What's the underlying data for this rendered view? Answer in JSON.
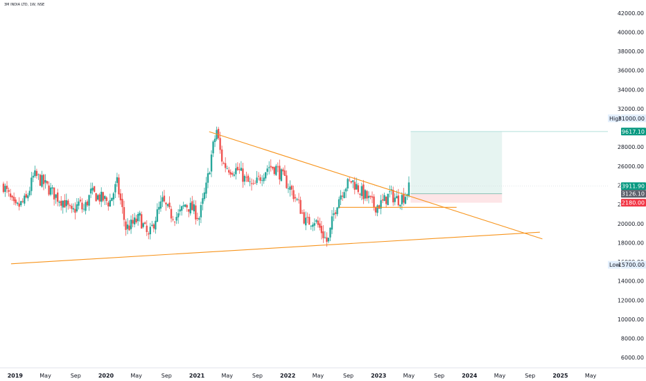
{
  "symbol_title": "3M INDIA LTD, 1W, NSE",
  "colors": {
    "up": "#26a69a",
    "down": "#ef5350",
    "trendline": "#f7931a",
    "target_fill": "#e6f4f1",
    "stop_fill": "#fde5e7",
    "target_label": "#089981",
    "entry_label": "#5d606b",
    "stop_label": "#f23645",
    "grid_line": "#b2dfdb"
  },
  "chart_data": {
    "type": "candlestick",
    "title": "3M INDIA LTD, 1W, NSE",
    "x_range": [
      "2018-11",
      "2025-07"
    ],
    "ylim": [
      5000,
      43000
    ],
    "y_ticks": [
      "42000.00",
      "40000.00",
      "38000.00",
      "36000.00",
      "34000.00",
      "32000.00",
      "31000.00",
      "28000.00",
      "26000.00",
      "24000.00",
      "22000.00",
      "20000.00",
      "18000.00",
      "16000.00",
      "14000.00",
      "12000.00",
      "10000.00",
      "8000.00",
      "6000.00"
    ],
    "x_ticks": [
      {
        "label": "2019",
        "date": "2019-01"
      },
      {
        "label": "May",
        "date": "2019-05"
      },
      {
        "label": "Sep",
        "date": "2019-09"
      },
      {
        "label": "2020",
        "date": "2020-01"
      },
      {
        "label": "May",
        "date": "2020-05"
      },
      {
        "label": "Sep",
        "date": "2020-09"
      },
      {
        "label": "2021",
        "date": "2021-01"
      },
      {
        "label": "May",
        "date": "2021-05"
      },
      {
        "label": "Sep",
        "date": "2021-09"
      },
      {
        "label": "2022",
        "date": "2022-01"
      },
      {
        "label": "May",
        "date": "2022-05"
      },
      {
        "label": "Sep",
        "date": "2022-09"
      },
      {
        "label": "2023",
        "date": "2023-01"
      },
      {
        "label": "May",
        "date": "2023-05"
      },
      {
        "label": "Sep",
        "date": "2023-09"
      },
      {
        "label": "2024",
        "date": "2024-01"
      },
      {
        "label": "May",
        "date": "2024-05"
      },
      {
        "label": "Sep",
        "date": "2024-09"
      },
      {
        "label": "2025",
        "date": "2025-01"
      },
      {
        "label": "May",
        "date": "2025-05"
      }
    ],
    "price_path": [
      [
        "2018-11-15",
        24000
      ],
      [
        "2019-01-01",
        21500
      ],
      [
        "2019-02-15",
        22500
      ],
      [
        "2019-03-15",
        25000
      ],
      [
        "2019-04-01",
        24800
      ],
      [
        "2019-05-01",
        24000
      ],
      [
        "2019-06-15",
        22800
      ],
      [
        "2019-07-15",
        22300
      ],
      [
        "2019-08-15",
        21000
      ],
      [
        "2019-09-15",
        22200
      ],
      [
        "2019-10-01",
        21300
      ],
      [
        "2019-11-01",
        23200
      ],
      [
        "2019-12-15",
        22600
      ],
      [
        "2020-01-15",
        22200
      ],
      [
        "2020-02-15",
        24200
      ],
      [
        "2020-03-20",
        19500
      ],
      [
        "2020-04-15",
        19900
      ],
      [
        "2020-05-15",
        20600
      ],
      [
        "2020-06-20",
        18500
      ],
      [
        "2020-07-15",
        20500
      ],
      [
        "2020-08-15",
        22300
      ],
      [
        "2020-09-15",
        21000
      ],
      [
        "2020-10-15",
        20700
      ],
      [
        "2020-11-15",
        22000
      ],
      [
        "2020-12-15",
        21500
      ],
      [
        "2021-01-10",
        20600
      ],
      [
        "2021-02-10",
        24000
      ],
      [
        "2021-03-01",
        27500
      ],
      [
        "2021-03-20",
        29800
      ],
      [
        "2021-04-01",
        27800
      ],
      [
        "2021-04-15",
        26200
      ],
      [
        "2021-05-15",
        25700
      ],
      [
        "2021-06-15",
        25600
      ],
      [
        "2021-07-15",
        24500
      ],
      [
        "2021-08-15",
        23700
      ],
      [
        "2021-09-15",
        25000
      ],
      [
        "2021-10-15",
        26000
      ],
      [
        "2021-11-15",
        25800
      ],
      [
        "2021-12-15",
        24700
      ],
      [
        "2022-01-15",
        23500
      ],
      [
        "2022-02-15",
        22000
      ],
      [
        "2022-03-15",
        20000
      ],
      [
        "2022-04-15",
        20500
      ],
      [
        "2022-05-15",
        19200
      ],
      [
        "2022-06-10",
        17900
      ],
      [
        "2022-07-01",
        20800
      ],
      [
        "2022-07-20",
        22500
      ],
      [
        "2022-08-15",
        23800
      ],
      [
        "2022-09-15",
        24500
      ],
      [
        "2022-10-15",
        23500
      ],
      [
        "2022-11-15",
        22700
      ],
      [
        "2022-12-15",
        21800
      ],
      [
        "2023-01-15",
        22100
      ],
      [
        "2023-02-15",
        23100
      ],
      [
        "2023-03-15",
        22500
      ],
      [
        "2023-04-15",
        22900
      ],
      [
        "2023-05-05",
        23900
      ]
    ],
    "trendlines": [
      {
        "kind": "falling",
        "from": [
          "2021-02-20",
          29600
        ],
        "to": [
          "2024-10-20",
          18400
        ]
      },
      {
        "kind": "rising",
        "from": [
          "2018-12-15",
          15800
        ],
        "to": [
          "2024-10-10",
          19100
        ]
      },
      {
        "kind": "horizontal",
        "from": [
          "2022-07-25",
          21700
        ],
        "to": [
          "2023-11-10",
          21700
        ]
      }
    ],
    "position": {
      "start": "2023-05-08",
      "end": "2024-05-10",
      "target": 29617.1,
      "entry": 23126.1,
      "stop": 22180.0
    },
    "horizontal_ray": {
      "price": 29617.1,
      "from": "2023-05-08"
    },
    "price_labels": [
      {
        "text": "29617.10",
        "price": 29617.1,
        "role": "target"
      },
      {
        "text": "23911.90",
        "price": 23911.9,
        "role": "target"
      },
      {
        "text": "23126.10",
        "price": 23126.1,
        "role": "entry"
      },
      {
        "text": "22180.00",
        "price": 22180.0,
        "role": "stop"
      }
    ],
    "high": {
      "label": "High",
      "value": "31000.00",
      "price": 31000
    },
    "low": {
      "label": "Low",
      "value": "15700.00",
      "price": 15700
    }
  }
}
